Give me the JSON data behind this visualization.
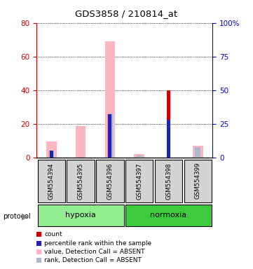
{
  "title": "GDS3858 / 210814_at",
  "samples": [
    "GSM554394",
    "GSM554395",
    "GSM554396",
    "GSM554397",
    "GSM554398",
    "GSM554399"
  ],
  "protocol_groups": [
    {
      "label": "hypoxia",
      "samples": [
        0,
        1,
        2
      ]
    },
    {
      "label": "normoxia",
      "samples": [
        3,
        4,
        5
      ]
    }
  ],
  "pink_values": [
    9.5,
    18.5,
    69.0,
    2.0,
    0.0,
    7.0
  ],
  "light_blue_values": [
    5.0,
    0.0,
    32.5,
    1.5,
    0.0,
    7.5
  ],
  "red_values": [
    0.0,
    0.0,
    0.0,
    0.0,
    40.0,
    0.0
  ],
  "blue_values": [
    5.0,
    0.0,
    32.0,
    0.0,
    28.0,
    0.0
  ],
  "ylim_left": [
    0,
    80
  ],
  "ylim_right": [
    0,
    100
  ],
  "yticks_left": [
    0,
    20,
    40,
    60,
    80
  ],
  "yticks_right": [
    0,
    25,
    50,
    75,
    100
  ],
  "ytick_right_labels": [
    "0",
    "25",
    "50",
    "75",
    "100%"
  ],
  "bar_width": 0.35,
  "bg_color": "#ffffff",
  "plot_bg_color": "#ffffff",
  "sample_box_color": "#d3d3d3",
  "hypoxia_color": "#90ee90",
  "normoxia_color": "#3dca3d",
  "pink_color": "#ffb6c1",
  "light_blue_color": "#aab8d0",
  "red_color": "#cc0000",
  "blue_color": "#2222aa",
  "left_axis_color": "#cc0000",
  "right_axis_color": "#0000cc",
  "grid_color": "#000000",
  "legend_items": [
    {
      "label": "count",
      "color": "#cc0000"
    },
    {
      "label": "percentile rank within the sample",
      "color": "#2222aa"
    },
    {
      "label": "value, Detection Call = ABSENT",
      "color": "#ffb6c1"
    },
    {
      "label": "rank, Detection Call = ABSENT",
      "color": "#aab8d0"
    }
  ]
}
